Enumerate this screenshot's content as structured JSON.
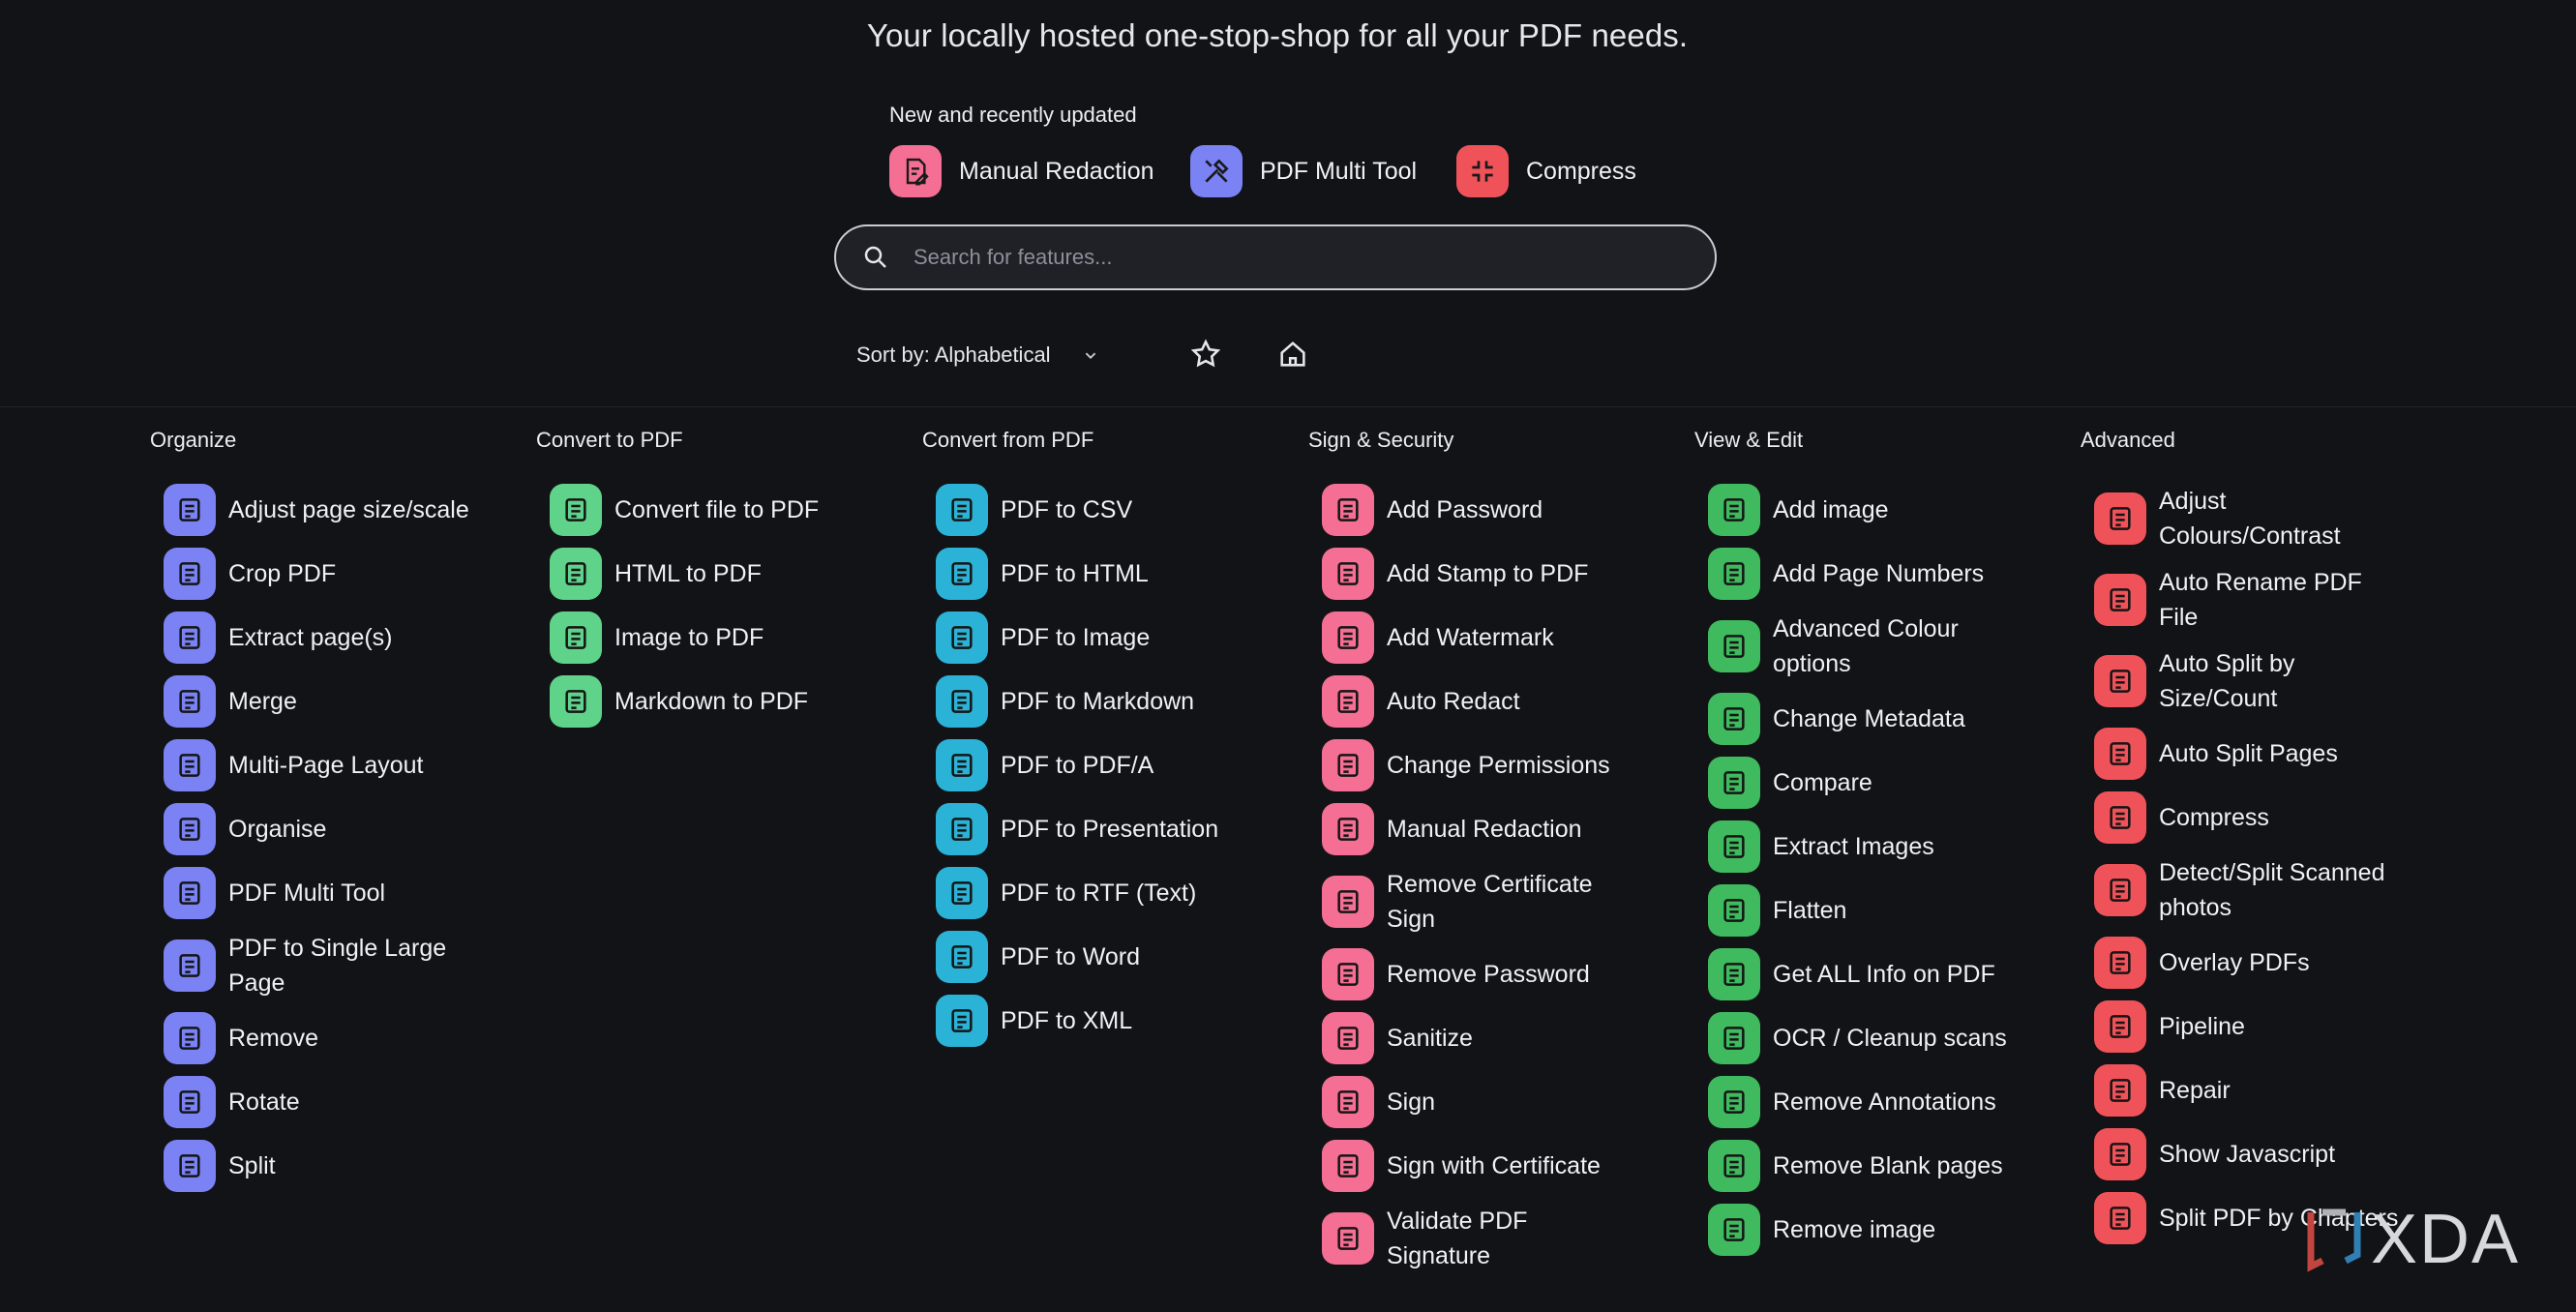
{
  "header": {
    "tagline": "Your locally hosted one-stop-shop for all your PDF needs.",
    "recent_title": "New and recently updated",
    "recent": [
      {
        "label": "Manual Redaction",
        "color": "#f46f93",
        "icon": "redaction-icon"
      },
      {
        "label": "PDF Multi Tool",
        "color": "#7a82f4",
        "icon": "tools-icon"
      },
      {
        "label": "Compress",
        "color": "#f0525a",
        "icon": "compress-icon"
      }
    ]
  },
  "search": {
    "placeholder": "Search for features..."
  },
  "sort": {
    "label": "Sort by: Alphabetical"
  },
  "categories": {
    "organize": {
      "title": "Organize",
      "color": "#7a82f4",
      "items": [
        "Adjust page size/scale",
        "Crop PDF",
        "Extract page(s)",
        "Merge",
        "Multi-Page Layout",
        "Organise",
        "PDF Multi Tool",
        "PDF to Single Large Page",
        "Remove",
        "Rotate",
        "Split"
      ]
    },
    "convert_to": {
      "title": "Convert to PDF",
      "color": "#5fd38a",
      "items": [
        "Convert file to PDF",
        "HTML to PDF",
        "Image to PDF",
        "Markdown to PDF"
      ]
    },
    "convert_from": {
      "title": "Convert from PDF",
      "color": "#2ab3d7",
      "items": [
        "PDF to CSV",
        "PDF to HTML",
        "PDF to Image",
        "PDF to Markdown",
        "PDF to PDF/A",
        "PDF to Presentation",
        "PDF to RTF (Text)",
        "PDF to Word",
        "PDF to XML"
      ]
    },
    "sign_security": {
      "title": "Sign & Security",
      "color": "#f46f93",
      "items": [
        "Add Password",
        "Add Stamp to PDF",
        "Add Watermark",
        "Auto Redact",
        "Change Permissions",
        "Manual Redaction",
        "Remove Certificate Sign",
        "Remove Password",
        "Sanitize",
        "Sign",
        "Sign with Certificate",
        "Validate PDF Signature"
      ]
    },
    "view_edit": {
      "title": "View & Edit",
      "color": "#3fba5e",
      "items": [
        "Add image",
        "Add Page Numbers",
        "Advanced Colour options",
        "Change Metadata",
        "Compare",
        "Extract Images",
        "Flatten",
        "Get ALL Info on PDF",
        "OCR / Cleanup scans",
        "Remove Annotations",
        "Remove Blank pages",
        "Remove image"
      ]
    },
    "advanced": {
      "title": "Advanced",
      "color": "#f0525a",
      "items": [
        "Adjust Colours/Contrast",
        "Auto Rename PDF File",
        "Auto Split by Size/Count",
        "Auto Split Pages",
        "Compress",
        "Detect/Split Scanned photos",
        "Overlay PDFs",
        "Pipeline",
        "Repair",
        "Show Javascript",
        "Split PDF by Chapters"
      ]
    }
  },
  "watermark": {
    "text": "XDA"
  }
}
